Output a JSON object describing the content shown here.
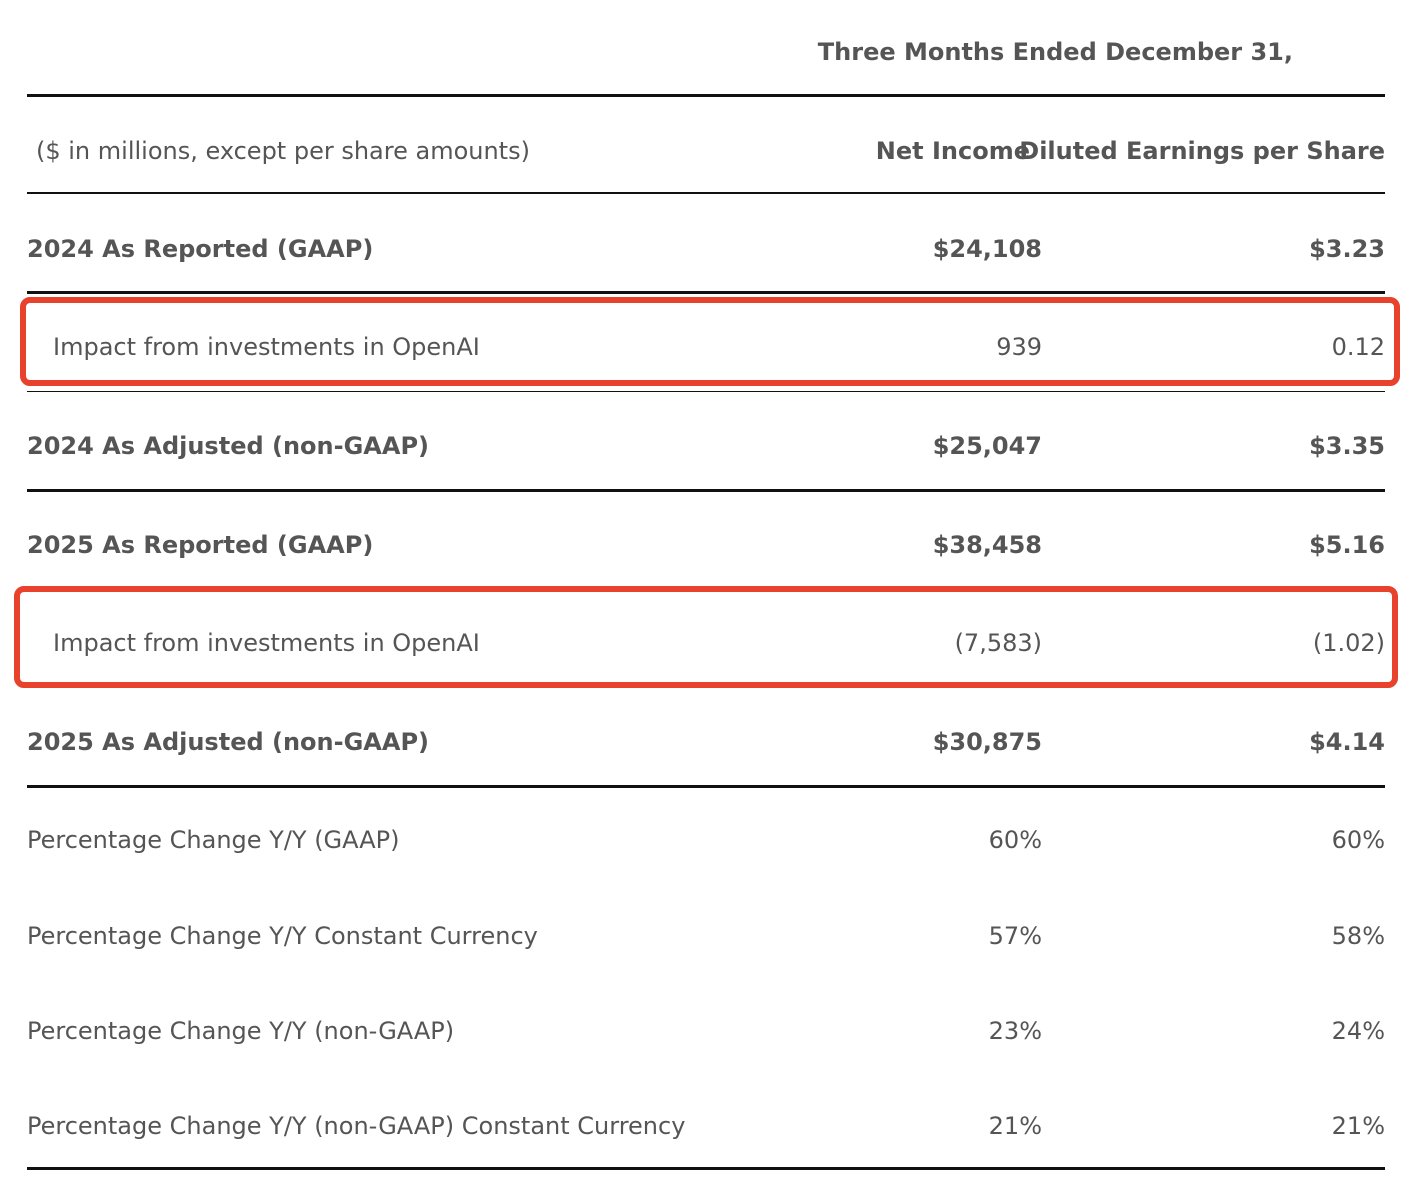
{
  "header": {
    "period": "Three Months Ended December 31,"
  },
  "table": {
    "columns": [
      "($ in millions, except per share amounts)",
      "Net Income",
      "Diluted Earnings per Share"
    ],
    "rows": [
      [
        "2024 As Reported (GAAP)",
        "$24,108",
        "$3.23"
      ],
      [
        "Impact from investments in OpenAI",
        "939",
        "0.12"
      ],
      [
        "2024 As Adjusted (non-GAAP)",
        "$25,047",
        "$3.35"
      ],
      [
        "2025 As Reported (GAAP)",
        "$38,458",
        "$5.16"
      ],
      [
        "Impact from investments in OpenAI",
        "(7,583)",
        "(1.02)"
      ],
      [
        "2025 As Adjusted (non-GAAP)",
        "$30,875",
        "$4.14"
      ],
      [
        "Percentage Change Y/Y (GAAP)",
        "60%",
        "60%"
      ],
      [
        "Percentage Change Y/Y Constant Currency",
        "57%",
        "58%"
      ],
      [
        "Percentage Change Y/Y (non-GAAP)",
        "23%",
        "24%"
      ],
      [
        "Percentage Change Y/Y (non-GAAP) Constant Currency",
        "21%",
        "21%"
      ]
    ]
  }
}
